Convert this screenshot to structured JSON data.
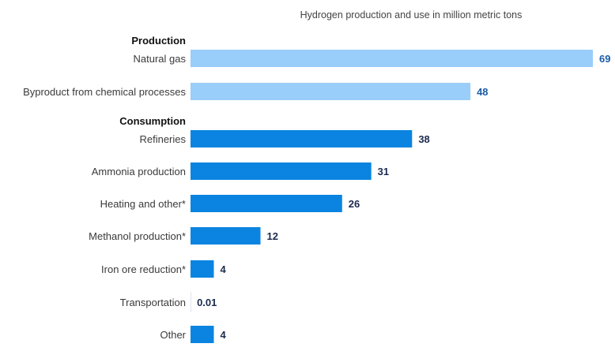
{
  "chart_data": {
    "type": "bar",
    "orientation": "horizontal",
    "title": "Hydrogen production and use in million metric tons",
    "xlabel": "",
    "ylabel": "",
    "xlim": [
      0,
      69
    ],
    "grid": false,
    "groups": [
      {
        "name": "Production",
        "color": "#99cdfa",
        "label_color": "#1a5da6",
        "categories": [
          "Natural gas",
          "Byproduct from chemical processes"
        ],
        "values": [
          69,
          48
        ],
        "value_labels": [
          "69",
          "48"
        ]
      },
      {
        "name": "Consumption",
        "color": "#0a84e0",
        "label_color": "#1b2b4d",
        "categories": [
          "Refineries",
          "Ammonia production",
          "Heating and other*",
          "Methanol production*",
          "Iron ore reduction*",
          "Transportation",
          "Other"
        ],
        "values": [
          38,
          31,
          26,
          12,
          4,
          0.01,
          4
        ],
        "value_labels": [
          "38",
          "31",
          "26",
          "12",
          "4",
          "0.01",
          "4"
        ]
      }
    ]
  }
}
